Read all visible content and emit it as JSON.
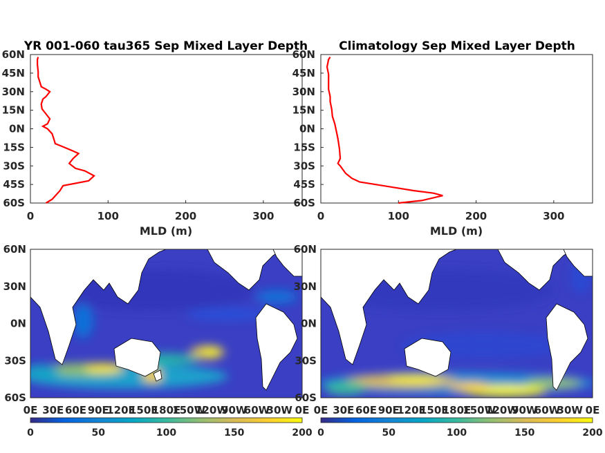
{
  "chart_data": [
    {
      "type": "line",
      "title": "YR 001-060 tau365 Sep Mixed Layer Depth",
      "xlabel": "MLD (m)",
      "xlim": [
        0,
        350
      ],
      "xticks": [
        "0",
        "100",
        "200",
        "300"
      ],
      "ylim": [
        -60,
        60
      ],
      "yticks": [
        "60N",
        "45N",
        "30N",
        "15N",
        "0N",
        "15S",
        "30S",
        "45S",
        "60S"
      ],
      "series": [
        {
          "color": "#ff0000",
          "x": [
            20,
            28,
            38,
            42,
            75,
            82,
            70,
            58,
            50,
            55,
            62,
            55,
            40,
            32,
            30,
            28,
            22,
            16,
            22,
            25,
            20,
            15,
            14,
            16,
            20,
            25,
            20,
            14,
            12,
            10,
            10,
            9,
            9,
            10
          ],
          "y": [
            -60,
            -57,
            -50,
            -46,
            -42,
            -38,
            -34,
            -32,
            -28,
            -24,
            -20,
            -18,
            -14,
            -12,
            -8,
            -4,
            0,
            2,
            4,
            8,
            12,
            16,
            20,
            24,
            26,
            30,
            32,
            34,
            38,
            42,
            46,
            52,
            56,
            58
          ]
        }
      ]
    },
    {
      "type": "line",
      "title": "Climatology Sep Mixed Layer Depth",
      "xlabel": "MLD (m)",
      "xlim": [
        0,
        350
      ],
      "xticks": [
        "0",
        "100",
        "200",
        "300"
      ],
      "ylim": [
        -60,
        60
      ],
      "yticks": [
        "60N",
        "45N",
        "30N",
        "15N",
        "0N",
        "15S",
        "30S",
        "45S",
        "60S"
      ],
      "series": [
        {
          "color": "#ff0000",
          "x": [
            100,
            130,
            157,
            145,
            120,
            90,
            70,
            50,
            40,
            32,
            25,
            22,
            25,
            24,
            22,
            20,
            18,
            15,
            14,
            12,
            12,
            10,
            10,
            10,
            8,
            10,
            12
          ],
          "y": [
            -60,
            -58,
            -54,
            -52,
            -50,
            -47,
            -45,
            -43,
            -40,
            -36,
            -30,
            -28,
            -24,
            -16,
            -8,
            -2,
            4,
            10,
            16,
            22,
            26,
            32,
            38,
            44,
            50,
            56,
            58
          ]
        }
      ]
    },
    {
      "type": "heatmap",
      "title": "",
      "xticks": [
        "0E",
        "30E",
        "60E",
        "90E",
        "120E",
        "150E",
        "180E",
        "150W",
        "120W",
        "90W",
        "60W",
        "30W",
        "0E"
      ],
      "yticks": [
        "60N",
        "30N",
        "0N",
        "30S",
        "60S"
      ],
      "colorbar": {
        "ticks": [
          "0",
          "50",
          "100",
          "150",
          "200"
        ],
        "range": [
          0,
          200
        ]
      }
    },
    {
      "type": "heatmap",
      "title": "",
      "xticks": [
        "0E",
        "30E",
        "60E",
        "90E",
        "120E",
        "150E",
        "180E",
        "150W",
        "120W",
        "90W",
        "60W",
        "30W",
        "0E"
      ],
      "yticks": [
        "60N",
        "30N",
        "0N",
        "30S",
        "60S"
      ],
      "colorbar": {
        "ticks": [
          "0",
          "50",
          "100",
          "150",
          "200"
        ],
        "range": [
          0,
          200
        ]
      }
    }
  ],
  "colors": {
    "line": "#ff0000",
    "land": "#ffffff",
    "parula": [
      "#352a87",
      "#0363e1",
      "#1485d4",
      "#06a7c6",
      "#38b99e",
      "#92bf73",
      "#d9ba56",
      "#fcce2e",
      "#f9fb0e"
    ]
  }
}
